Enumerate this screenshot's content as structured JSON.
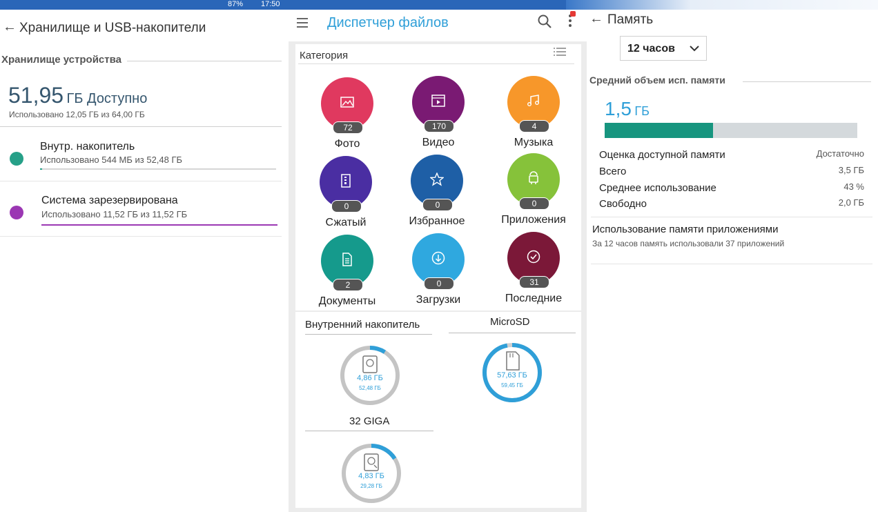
{
  "status_bar": {
    "battery": "87%",
    "time": "17:50"
  },
  "left": {
    "title": "Хранилище и USB-накопители",
    "section": "Хранилище устройства",
    "available_value": "51,95",
    "available_unit": "ГБ Доступно",
    "used_text": "Использовано 12,05 ГБ из 64,00 ГБ",
    "items": [
      {
        "name": "Внутр. накопитель",
        "detail": "Использовано 544 МБ из 52,48 ГБ",
        "color": "#26a088",
        "fill": 0.01
      },
      {
        "name": "Система зарезервирована",
        "detail": "Использовано 11,52 ГБ из 11,52 ГБ",
        "color": "#9b37b3",
        "fill": 1.0
      }
    ]
  },
  "middle": {
    "title": "Диспетчер файлов",
    "category_header": "Категория",
    "categories": [
      {
        "label": "Фото",
        "count": "72",
        "color": "#e0395f",
        "icon": "image-icon"
      },
      {
        "label": "Видео",
        "count": "170",
        "color": "#7a1a73",
        "icon": "video-icon"
      },
      {
        "label": "Музыка",
        "count": "4",
        "color": "#f7972a",
        "icon": "music-icon"
      },
      {
        "label": "Сжатый",
        "count": "0",
        "color": "#4a2ea2",
        "icon": "archive-icon"
      },
      {
        "label": "Избранное",
        "count": "0",
        "color": "#1e5fa6",
        "icon": "star-icon"
      },
      {
        "label": "Приложения",
        "count": "0",
        "color": "#86c23a",
        "icon": "android-icon"
      },
      {
        "label": "Документы",
        "count": "2",
        "color": "#159a8c",
        "icon": "document-icon"
      },
      {
        "label": "Загрузки",
        "count": "0",
        "color": "#2fa8df",
        "icon": "download-icon"
      },
      {
        "label": "Последние",
        "count": "31",
        "color": "#7b1838",
        "icon": "recent-icon"
      }
    ],
    "storages": [
      {
        "name": "Внутренний накопитель",
        "used": "4,86 ГБ",
        "total": "52,48 ГБ",
        "fraction": 0.09,
        "icon": "hdd-icon"
      },
      {
        "name": "MicroSD",
        "used": "57,63 ГБ",
        "total": "59,45 ГБ",
        "fraction": 0.97,
        "icon": "sdcard-icon"
      },
      {
        "name": "32 GIGA",
        "used": "4,83 ГБ",
        "total": "29,28 ГБ",
        "fraction": 0.16,
        "icon": "usb-drive-icon"
      }
    ],
    "accent": "#2f9fd8"
  },
  "right": {
    "title": "Память",
    "period": "12 часов",
    "section": "Средний объем исп. памяти",
    "avg_value": "1,5",
    "avg_unit": "ГБ",
    "usage_fraction": 0.43,
    "bar_color": "#17957f",
    "rows": [
      {
        "label": "Оценка доступной памяти",
        "value": "Достаточно"
      },
      {
        "label": "Всего",
        "value": "3,5 ГБ"
      },
      {
        "label": "Среднее использование",
        "value": "43 %"
      },
      {
        "label": "Свободно",
        "value": "2,0 ГБ"
      }
    ],
    "apps_title": "Использование памяти приложениями",
    "apps_subtitle": "За 12 часов память использовали 37 приложений"
  }
}
